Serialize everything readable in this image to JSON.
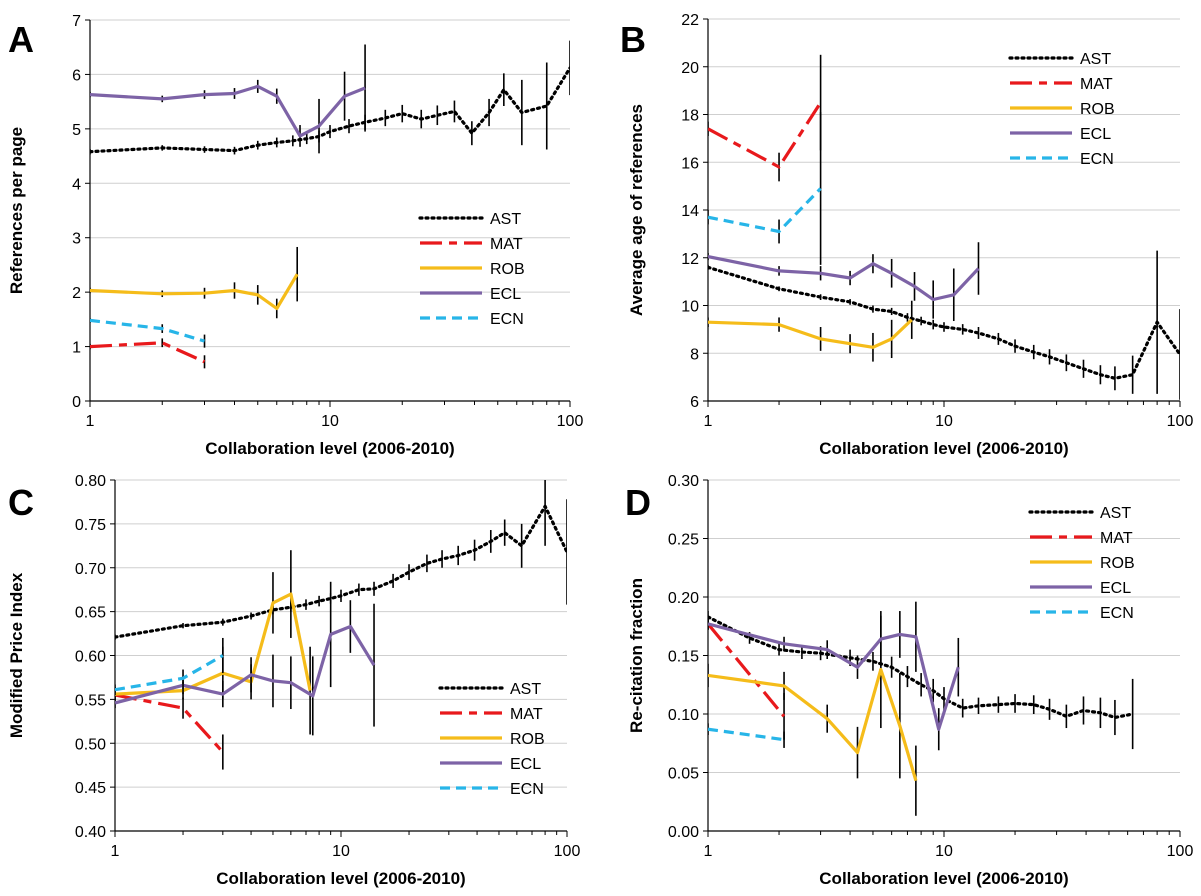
{
  "series_styles": {
    "AST": {
      "color": "#000000",
      "dash": "2,4",
      "width": 3.2
    },
    "MAT": {
      "color": "#e8191c",
      "dash": "22,7,8,7",
      "width": 3.2
    },
    "ROB": {
      "color": "#f5bc1a",
      "dash": "",
      "width": 3.2
    },
    "ECL": {
      "color": "#7d63a6",
      "dash": "",
      "width": 3.2
    },
    "ECN": {
      "color": "#27b5e8",
      "dash": "10,6",
      "width": 3.2
    }
  },
  "chart_data": [
    {
      "panel": "A",
      "type": "line",
      "xlabel": "Collaboration level (2006-2010)",
      "ylabel": "References per page",
      "xscale": "log",
      "xlim": [
        1,
        100
      ],
      "ylim": [
        0,
        7
      ],
      "xticks": [
        1,
        10,
        100
      ],
      "yticks": [
        0,
        1,
        2,
        3,
        4,
        5,
        6,
        7
      ],
      "ytick_labels": [
        "0",
        "1",
        "2",
        "3",
        "4",
        "5",
        "6",
        "7"
      ],
      "grid": "horizontal",
      "legend_position": "lower-right",
      "legend": [
        "AST",
        "MAT",
        "ROB",
        "ECL",
        "ECN"
      ],
      "series": [
        {
          "name": "AST",
          "x": [
            1,
            2,
            3,
            4,
            5,
            6,
            7,
            8,
            9,
            10,
            12,
            14,
            17,
            20,
            24,
            28,
            33,
            39,
            46,
            53,
            63,
            80,
            100
          ],
          "y": [
            4.58,
            4.65,
            4.62,
            4.6,
            4.7,
            4.75,
            4.78,
            4.82,
            4.86,
            4.95,
            5.05,
            5.12,
            5.2,
            5.28,
            5.18,
            5.25,
            5.32,
            4.92,
            5.3,
            5.72,
            5.3,
            5.42,
            6.12
          ],
          "err": [
            0.05,
            0.05,
            0.06,
            0.07,
            0.08,
            0.09,
            0.1,
            0.1,
            0.11,
            0.12,
            0.13,
            0.14,
            0.15,
            0.16,
            0.17,
            0.18,
            0.2,
            0.22,
            0.25,
            0.3,
            0.6,
            0.8,
            0.5
          ]
        },
        {
          "name": "MAT",
          "x": [
            1,
            2,
            3
          ],
          "y": [
            1.0,
            1.07,
            0.72
          ],
          "err": [
            0.05,
            0.08,
            0.12
          ]
        },
        {
          "name": "ROB",
          "x": [
            1,
            2,
            3,
            4,
            5,
            6,
            7.3
          ],
          "y": [
            2.03,
            1.97,
            1.98,
            2.03,
            1.95,
            1.7,
            2.33
          ],
          "err": [
            0.05,
            0.06,
            0.1,
            0.15,
            0.18,
            0.18,
            0.5
          ]
        },
        {
          "name": "ECL",
          "x": [
            1,
            2,
            3,
            4,
            5,
            6,
            7.5,
            9,
            11.5,
            14
          ],
          "y": [
            5.63,
            5.55,
            5.63,
            5.65,
            5.78,
            5.6,
            4.87,
            5.05,
            5.6,
            5.75
          ],
          "err": [
            0.05,
            0.06,
            0.08,
            0.1,
            0.12,
            0.14,
            0.2,
            0.5,
            0.45,
            0.8
          ]
        },
        {
          "name": "ECN",
          "x": [
            1,
            2,
            3
          ],
          "y": [
            1.48,
            1.33,
            1.1
          ],
          "err": [
            0.04,
            0.08,
            0.12
          ]
        }
      ]
    },
    {
      "panel": "B",
      "type": "line",
      "xlabel": "Collaboration level (2006-2010)",
      "ylabel": "Average age of references",
      "xscale": "log",
      "xlim": [
        1,
        100
      ],
      "ylim": [
        6,
        22
      ],
      "xticks": [
        1,
        10,
        100
      ],
      "yticks": [
        6,
        8,
        10,
        12,
        14,
        16,
        18,
        20,
        22
      ],
      "ytick_labels": [
        "6",
        "8",
        "10",
        "12",
        "14",
        "16",
        "18",
        "20",
        "22"
      ],
      "grid": "horizontal",
      "legend_position": "top-right",
      "legend": [
        "AST",
        "MAT",
        "ROB",
        "ECL",
        "ECN"
      ],
      "series": [
        {
          "name": "AST",
          "x": [
            1,
            2,
            3,
            4,
            5,
            6,
            7,
            8,
            9,
            10,
            12,
            14,
            17,
            20,
            24,
            28,
            33,
            39,
            46,
            53,
            63,
            80,
            100
          ],
          "y": [
            11.6,
            10.7,
            10.35,
            10.15,
            9.85,
            9.75,
            9.5,
            9.35,
            9.2,
            9.1,
            9.0,
            8.85,
            8.6,
            8.3,
            8.05,
            7.85,
            7.6,
            7.35,
            7.1,
            6.95,
            7.1,
            9.3,
            7.95
          ],
          "err": [
            0.1,
            0.1,
            0.12,
            0.12,
            0.15,
            0.15,
            0.18,
            0.18,
            0.2,
            0.2,
            0.22,
            0.25,
            0.25,
            0.28,
            0.3,
            0.32,
            0.35,
            0.38,
            0.4,
            0.5,
            0.8,
            3.0,
            1.9
          ]
        },
        {
          "name": "MAT",
          "x": [
            1,
            2,
            3
          ],
          "y": [
            17.4,
            15.8,
            18.5
          ],
          "err": [
            0.3,
            0.6,
            2.0
          ]
        },
        {
          "name": "ROB",
          "x": [
            1,
            2,
            3,
            4,
            5,
            6,
            7.3
          ],
          "y": [
            9.3,
            9.2,
            8.6,
            8.4,
            8.25,
            8.6,
            9.4
          ],
          "err": [
            0.2,
            0.3,
            0.5,
            0.4,
            0.6,
            0.8,
            0.8
          ]
        },
        {
          "name": "ECL",
          "x": [
            1,
            2,
            3,
            4,
            5,
            6,
            7.5,
            9,
            11,
            14
          ],
          "y": [
            12.05,
            11.45,
            11.35,
            11.15,
            11.75,
            11.35,
            10.8,
            10.25,
            10.45,
            11.55
          ],
          "err": [
            0.15,
            0.2,
            0.3,
            0.3,
            0.4,
            0.6,
            0.6,
            0.8,
            1.1,
            1.1
          ]
        },
        {
          "name": "ECN",
          "x": [
            1,
            2,
            3
          ],
          "y": [
            13.7,
            13.1,
            14.9
          ],
          "err": [
            0.3,
            0.5,
            3.2
          ]
        }
      ]
    },
    {
      "panel": "C",
      "type": "line",
      "xlabel": "Collaboration level (2006-2010)",
      "ylabel": "Modified Price Index",
      "xscale": "log",
      "xlim": [
        1,
        100
      ],
      "ylim": [
        0.4,
        0.8
      ],
      "xticks": [
        1,
        10,
        100
      ],
      "yticks": [
        0.4,
        0.45,
        0.5,
        0.55,
        0.6,
        0.65,
        0.7,
        0.75,
        0.8
      ],
      "ytick_labels": [
        "0.40",
        "0.45",
        "0.50",
        "0.55",
        "0.60",
        "0.65",
        "0.70",
        "0.75",
        "0.80"
      ],
      "grid": "horizontal",
      "legend_position": "lower-right",
      "legend": [
        "AST",
        "MAT",
        "ROB",
        "ECL",
        "ECN"
      ],
      "series": [
        {
          "name": "AST",
          "x": [
            1,
            2,
            3,
            4,
            5,
            6,
            7,
            8,
            9,
            10,
            12,
            14,
            17,
            20,
            24,
            28,
            33,
            39,
            46,
            53,
            63,
            80,
            100
          ],
          "y": [
            0.621,
            0.634,
            0.638,
            0.645,
            0.652,
            0.655,
            0.658,
            0.662,
            0.665,
            0.668,
            0.675,
            0.676,
            0.685,
            0.695,
            0.705,
            0.71,
            0.714,
            0.72,
            0.73,
            0.74,
            0.725,
            0.77,
            0.718
          ],
          "err": [
            0.003,
            0.003,
            0.004,
            0.004,
            0.005,
            0.005,
            0.006,
            0.006,
            0.006,
            0.007,
            0.007,
            0.008,
            0.008,
            0.009,
            0.01,
            0.01,
            0.011,
            0.012,
            0.013,
            0.015,
            0.025,
            0.045,
            0.06
          ]
        },
        {
          "name": "MAT",
          "x": [
            1,
            2,
            3
          ],
          "y": [
            0.555,
            0.54,
            0.49
          ],
          "err": [
            0.006,
            0.012,
            0.02
          ]
        },
        {
          "name": "ROB",
          "x": [
            1,
            2,
            3,
            4,
            5,
            6,
            7.3
          ],
          "y": [
            0.556,
            0.56,
            0.58,
            0.57,
            0.66,
            0.67,
            0.56
          ],
          "err": [
            0.008,
            0.01,
            0.03,
            0.02,
            0.035,
            0.05,
            0.05
          ]
        },
        {
          "name": "ECL",
          "x": [
            1,
            2,
            3,
            4,
            5,
            6,
            7.5,
            9,
            11,
            14
          ],
          "y": [
            0.546,
            0.566,
            0.556,
            0.578,
            0.571,
            0.569,
            0.554,
            0.624,
            0.633,
            0.589
          ],
          "err": [
            0.006,
            0.01,
            0.015,
            0.02,
            0.03,
            0.03,
            0.045,
            0.06,
            0.03,
            0.07
          ]
        },
        {
          "name": "ECN",
          "x": [
            1,
            2,
            3
          ],
          "y": [
            0.561,
            0.574,
            0.6
          ],
          "err": [
            0.006,
            0.01,
            0.02
          ]
        }
      ]
    },
    {
      "panel": "D",
      "type": "line",
      "xlabel": "Collaboration level (2006-2010)",
      "ylabel": "Re-citation fraction",
      "xscale": "log",
      "xlim": [
        1,
        100
      ],
      "ylim": [
        0,
        0.3
      ],
      "xticks": [
        1,
        10,
        100
      ],
      "yticks": [
        0,
        0.05,
        0.1,
        0.15,
        0.2,
        0.25,
        0.3
      ],
      "ytick_labels": [
        "0.00",
        "0.05",
        "0.10",
        "0.15",
        "0.20",
        "0.25",
        "0.30"
      ],
      "grid": "horizontal",
      "legend_position": "top-right",
      "legend": [
        "AST",
        "MAT",
        "ROB",
        "ECL",
        "ECN"
      ],
      "series": [
        {
          "name": "AST",
          "x": [
            1,
            1.5,
            2,
            2.5,
            3,
            4,
            5,
            6,
            7,
            8,
            9,
            10,
            12,
            14,
            17,
            20,
            24,
            28,
            33,
            39,
            46,
            53,
            63
          ],
          "y": [
            0.183,
            0.165,
            0.155,
            0.153,
            0.152,
            0.148,
            0.145,
            0.14,
            0.132,
            0.125,
            0.12,
            0.113,
            0.105,
            0.107,
            0.108,
            0.109,
            0.108,
            0.104,
            0.098,
            0.103,
            0.101,
            0.097,
            0.1
          ],
          "err": [
            0.005,
            0.005,
            0.005,
            0.006,
            0.006,
            0.007,
            0.008,
            0.009,
            0.009,
            0.01,
            0.01,
            0.01,
            0.008,
            0.007,
            0.007,
            0.008,
            0.008,
            0.009,
            0.01,
            0.012,
            0.013,
            0.015,
            0.03
          ]
        },
        {
          "name": "MAT",
          "x": [
            1,
            2.1
          ],
          "y": [
            0.177,
            0.098
          ],
          "err": [
            0.005,
            0.02
          ]
        },
        {
          "name": "ROB",
          "x": [
            1,
            2.1,
            3.2,
            4.3,
            5.4,
            6.5,
            7.6
          ],
          "y": [
            0.133,
            0.124,
            0.096,
            0.067,
            0.138,
            0.09,
            0.043
          ],
          "err": [
            0.01,
            0.012,
            0.012,
            0.022,
            0.05,
            0.045,
            0.03
          ]
        },
        {
          "name": "ECL",
          "x": [
            1,
            2.1,
            3.2,
            4.3,
            5.4,
            6.5,
            7.6,
            9.5,
            11.5
          ],
          "y": [
            0.177,
            0.16,
            0.155,
            0.14,
            0.164,
            0.168,
            0.166,
            0.087,
            0.14
          ],
          "err": [
            0.005,
            0.006,
            0.008,
            0.01,
            0.02,
            0.02,
            0.03,
            0.018,
            0.025
          ]
        },
        {
          "name": "ECN",
          "x": [
            1,
            2.1
          ],
          "y": [
            0.087,
            0.078
          ],
          "err": [
            0.005,
            0.007
          ]
        }
      ]
    }
  ]
}
